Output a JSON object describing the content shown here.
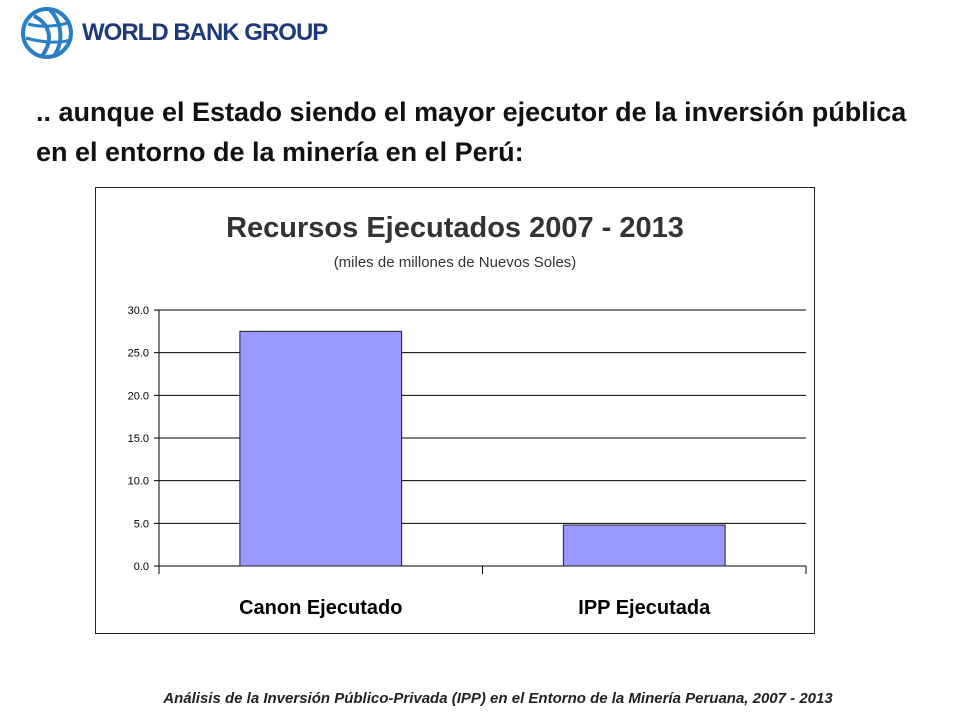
{
  "logo": {
    "text": "WORLD BANK GROUP",
    "globe_icon": "globe-icon",
    "color": "#1f3a7a"
  },
  "headline": ".. aunque el Estado siendo el mayor ejecutor de la inversión pública en el entorno de la minería en el Perú:",
  "footer": "Análisis de la Inversión Público-Privada (IPP) en el Entorno de la Minería Peruana, 2007 - 2013",
  "chart_data": {
    "type": "bar",
    "title": "Recursos Ejecutados 2007 - 2013",
    "subtitle": "(miles de millones de Nuevos Soles)",
    "categories": [
      "Canon Ejecutado",
      "IPP Ejecutada"
    ],
    "values": [
      27.5,
      4.8
    ],
    "ylim": [
      0,
      30
    ],
    "yticks": [
      "0.0",
      "5.0",
      "10.0",
      "15.0",
      "20.0",
      "25.0",
      "30.0"
    ],
    "grid": true,
    "legend": "none",
    "bar_color": "#9999ff",
    "bar_edge_color": "#222222"
  }
}
